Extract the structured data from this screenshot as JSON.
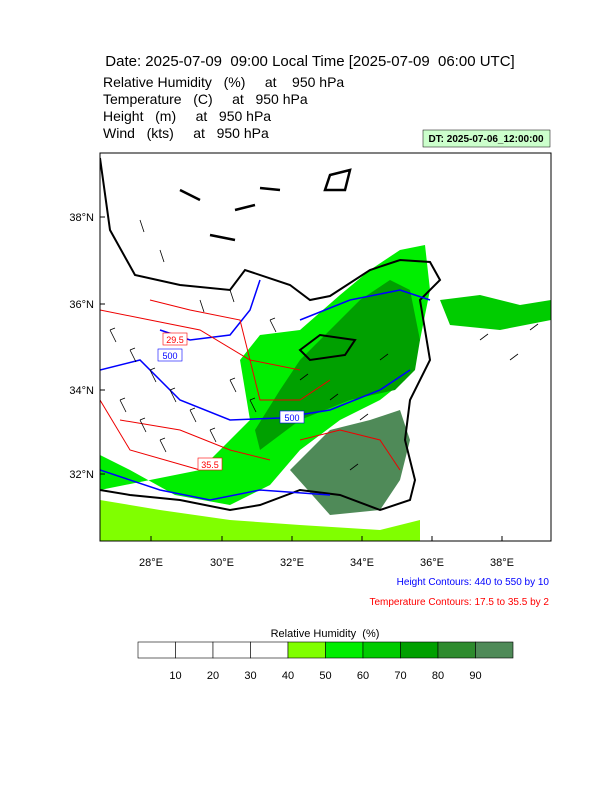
{
  "header": {
    "title": "Date: 2025-07-09  09:00 Local Time [2025-07-09  06:00 UTC]",
    "fields": [
      "Relative Humidity   (%)     at    950 hPa",
      "Temperature   (C)     at   950 hPa",
      "Height   (m)     at   950 hPa",
      "Wind   (kts)     at   950 hPa"
    ],
    "dt_badge": "DT: 2025-07-06_12:00:00"
  },
  "map": {
    "lat_labels": [
      "38°N",
      "36°N",
      "34°N",
      "32°N"
    ],
    "lon_labels": [
      "28°E",
      "30°E",
      "32°E",
      "34°E",
      "36°E",
      "38°E"
    ],
    "contour_labels": [
      {
        "text": "29.5",
        "color": "red"
      },
      {
        "text": "500",
        "color": "blue"
      },
      {
        "text": "500",
        "color": "blue"
      },
      {
        "text": "35.5",
        "color": "red"
      }
    ]
  },
  "notes": [
    {
      "text": "Height Contours: 440 to 550 by 10",
      "color": "#0000ff"
    },
    {
      "text": "Temperature Contours: 17.5 to 35.5 by 2",
      "color": "#ff0000"
    }
  ],
  "colorbar": {
    "title": "Relative Humidity  (%)",
    "labels": [
      "10",
      "20",
      "30",
      "40",
      "50",
      "60",
      "70",
      "80",
      "90"
    ],
    "colors": [
      "#ffffff",
      "#ffffff",
      "#ffffff",
      "#ffffff",
      "#80ff00",
      "#00ee00",
      "#00cc00",
      "#00a000",
      "#2e8b2e",
      "#4f8a58"
    ]
  }
}
